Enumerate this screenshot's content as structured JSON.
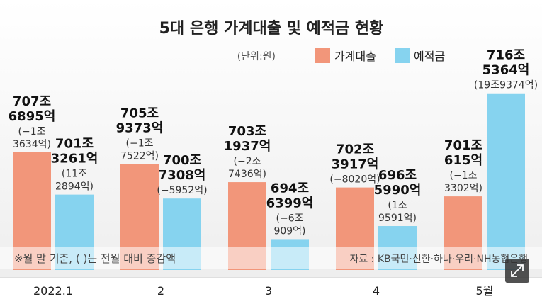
{
  "chart_data": {
    "type": "bar",
    "title": "5대 은행 가계대출 및 예적금 현황",
    "unit_note": "(단위:원)",
    "categories": [
      "2022.1",
      "2",
      "3",
      "4",
      "5월"
    ],
    "series": [
      {
        "name": "가계대출",
        "color": "#f2967a",
        "values": [
          7076895,
          7059373,
          7031937,
          7023917,
          7010615
        ],
        "value_labels": [
          [
            "707조",
            "6895억"
          ],
          [
            "705조",
            "9373억"
          ],
          [
            "703조",
            "1937억"
          ],
          [
            "702조",
            "3917억"
          ],
          [
            "701조",
            "615억"
          ]
        ],
        "change_labels": [
          [
            "(−1조",
            "3634억)"
          ],
          [
            "(−1조",
            "7522억)"
          ],
          [
            "(−2조",
            "7436억)"
          ],
          [
            "(−8020억)"
          ],
          [
            "(−1조",
            "3302억)"
          ]
        ]
      },
      {
        "name": "예적금",
        "color": "#86d3ef",
        "values": [
          7013261,
          7007308,
          6946399,
          6965990,
          7165364
        ],
        "value_labels": [
          [
            "701조",
            "3261억"
          ],
          [
            "700조",
            "7308억"
          ],
          [
            "694조",
            "6399억"
          ],
          [
            "696조",
            "5990억"
          ],
          [
            "716조",
            "5364억"
          ]
        ],
        "change_labels": [
          [
            "(11조",
            "2894억)"
          ],
          [
            "(−5952억)"
          ],
          [
            "(−6조",
            "909억)"
          ],
          [
            "(1조",
            "9591억)"
          ],
          [
            "(19조9374억)"
          ]
        ]
      }
    ],
    "footnote": "※월 말 기준, (    )는 전월 대비 증감액",
    "source": "자료 : KB국민·신한·하나·우리·NH농협은행"
  }
}
